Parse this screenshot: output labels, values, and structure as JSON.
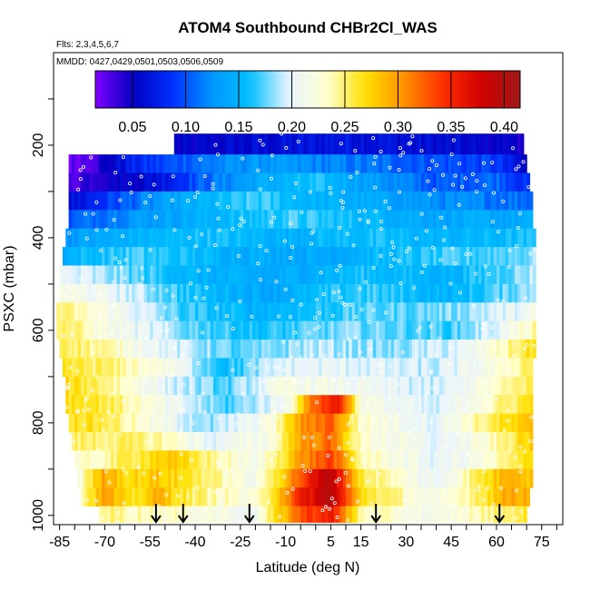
{
  "chart_data": {
    "type": "heatmap",
    "title": "ATOM4 Southbound CHBr2Cl_WAS",
    "flights_note": "Flts: 2,3,4,5,6,7",
    "dates_note": "MMDD: 0427,0429,0501,0503,0506,0509",
    "xlabel": "Latitude (deg N)",
    "ylabel": "PSXC (mbar)",
    "xlim": [
      -87,
      82
    ],
    "ylim": [
      1020,
      0
    ],
    "x_ticks": [
      -85,
      -70,
      -55,
      -40,
      -25,
      -10,
      5,
      15,
      30,
      45,
      60,
      75
    ],
    "x_tick_labels": [
      "-85",
      "-70",
      "-55",
      "-40",
      "-25",
      "-10",
      "5",
      "15",
      "30",
      "45",
      "60",
      "75"
    ],
    "y_ticks": [
      200,
      400,
      600,
      800,
      1000
    ],
    "y_tick_labels": [
      "200",
      "400",
      "600",
      "800",
      "1000"
    ],
    "colorbar": {
      "min": 0.015,
      "max": 0.415,
      "ticks": [
        0.05,
        0.1,
        0.15,
        0.2,
        0.25,
        0.3,
        0.35,
        0.4
      ],
      "tick_labels": [
        "0.05",
        "0.10",
        "0.15",
        "0.20",
        "0.25",
        "0.30",
        "0.35",
        "0.40"
      ],
      "colors": [
        "#7f00ff",
        "#0000c0",
        "#0030ff",
        "#0095ff",
        "#00bfff",
        "#e8f4ff",
        "#ffffd0",
        "#ffe000",
        "#ff9000",
        "#ff3000",
        "#d00000",
        "#a01818"
      ]
    },
    "pressure_bands": [
      {
        "p_top": 175,
        "p_bot": 220,
        "lat_min": -47,
        "lat_max": 69,
        "knots": [
          [
            -47,
            0.05
          ],
          [
            -20,
            0.06
          ],
          [
            10,
            0.07
          ],
          [
            40,
            0.06
          ],
          [
            69,
            0.05
          ]
        ]
      },
      {
        "p_top": 220,
        "p_bot": 260,
        "lat_min": -82,
        "lat_max": 70,
        "knots": [
          [
            -82,
            0.02
          ],
          [
            -72,
            0.04
          ],
          [
            -60,
            0.08
          ],
          [
            -40,
            0.11
          ],
          [
            -20,
            0.13
          ],
          [
            0,
            0.12
          ],
          [
            20,
            0.11
          ],
          [
            40,
            0.1
          ],
          [
            60,
            0.09
          ],
          [
            70,
            0.05
          ]
        ]
      },
      {
        "p_top": 260,
        "p_bot": 300,
        "lat_min": -82,
        "lat_max": 71,
        "knots": [
          [
            -82,
            0.03
          ],
          [
            -70,
            0.05
          ],
          [
            -55,
            0.06
          ],
          [
            -40,
            0.1
          ],
          [
            -20,
            0.14
          ],
          [
            0,
            0.16
          ],
          [
            20,
            0.13
          ],
          [
            40,
            0.1
          ],
          [
            60,
            0.11
          ],
          [
            71,
            0.08
          ]
        ]
      },
      {
        "p_top": 300,
        "p_bot": 340,
        "lat_min": -82,
        "lat_max": 72,
        "knots": [
          [
            -82,
            0.06
          ],
          [
            -65,
            0.1
          ],
          [
            -45,
            0.14
          ],
          [
            -20,
            0.17
          ],
          [
            0,
            0.15
          ],
          [
            20,
            0.14
          ],
          [
            45,
            0.12
          ],
          [
            72,
            0.11
          ]
        ]
      },
      {
        "p_top": 340,
        "p_bot": 380,
        "lat_min": -82,
        "lat_max": 72,
        "knots": [
          [
            -82,
            0.1
          ],
          [
            -60,
            0.13
          ],
          [
            -35,
            0.15
          ],
          [
            -10,
            0.17
          ],
          [
            10,
            0.16
          ],
          [
            40,
            0.14
          ],
          [
            72,
            0.14
          ]
        ]
      },
      {
        "p_top": 380,
        "p_bot": 420,
        "lat_min": -83,
        "lat_max": 73,
        "knots": [
          [
            -83,
            0.13
          ],
          [
            -60,
            0.15
          ],
          [
            -35,
            0.16
          ],
          [
            -10,
            0.15
          ],
          [
            15,
            0.16
          ],
          [
            45,
            0.15
          ],
          [
            73,
            0.16
          ]
        ]
      },
      {
        "p_top": 420,
        "p_bot": 460,
        "lat_min": -84,
        "lat_max": 73,
        "knots": [
          [
            -84,
            0.15
          ],
          [
            -60,
            0.17
          ],
          [
            -30,
            0.15
          ],
          [
            0,
            0.14
          ],
          [
            30,
            0.16
          ],
          [
            73,
            0.18
          ]
        ]
      },
      {
        "p_top": 460,
        "p_bot": 500,
        "lat_min": -85,
        "lat_max": 73,
        "knots": [
          [
            -85,
            0.2
          ],
          [
            -65,
            0.18
          ],
          [
            -40,
            0.15
          ],
          [
            -15,
            0.14
          ],
          [
            15,
            0.16
          ],
          [
            45,
            0.15
          ],
          [
            73,
            0.19
          ]
        ]
      },
      {
        "p_top": 500,
        "p_bot": 540,
        "lat_min": -85,
        "lat_max": 73,
        "knots": [
          [
            -85,
            0.22
          ],
          [
            -65,
            0.2
          ],
          [
            -40,
            0.16
          ],
          [
            -15,
            0.14
          ],
          [
            15,
            0.17
          ],
          [
            45,
            0.15
          ],
          [
            73,
            0.19
          ]
        ]
      },
      {
        "p_top": 540,
        "p_bot": 580,
        "lat_min": -86,
        "lat_max": 73,
        "knots": [
          [
            -86,
            0.25
          ],
          [
            -70,
            0.22
          ],
          [
            -45,
            0.17
          ],
          [
            -20,
            0.15
          ],
          [
            10,
            0.17
          ],
          [
            45,
            0.18
          ],
          [
            73,
            0.21
          ]
        ]
      },
      {
        "p_top": 580,
        "p_bot": 620,
        "lat_min": -86,
        "lat_max": 73,
        "knots": [
          [
            -86,
            0.26
          ],
          [
            -70,
            0.22
          ],
          [
            -45,
            0.18
          ],
          [
            -20,
            0.16
          ],
          [
            10,
            0.18
          ],
          [
            45,
            0.17
          ],
          [
            60,
            0.2
          ],
          [
            73,
            0.24
          ]
        ]
      },
      {
        "p_top": 620,
        "p_bot": 660,
        "lat_min": -85,
        "lat_max": 73,
        "knots": [
          [
            -85,
            0.26
          ],
          [
            -70,
            0.24
          ],
          [
            -50,
            0.2
          ],
          [
            -25,
            0.17
          ],
          [
            0,
            0.19
          ],
          [
            25,
            0.18
          ],
          [
            50,
            0.2
          ],
          [
            73,
            0.27
          ]
        ]
      },
      {
        "p_top": 660,
        "p_bot": 700,
        "lat_min": -84,
        "lat_max": 72,
        "knots": [
          [
            -84,
            0.26
          ],
          [
            -70,
            0.25
          ],
          [
            -50,
            0.22
          ],
          [
            -30,
            0.16
          ],
          [
            -10,
            0.2
          ],
          [
            10,
            0.2
          ],
          [
            40,
            0.19
          ],
          [
            60,
            0.22
          ],
          [
            72,
            0.26
          ]
        ]
      },
      {
        "p_top": 700,
        "p_bot": 740,
        "lat_min": -83,
        "lat_max": 72,
        "knots": [
          [
            -83,
            0.27
          ],
          [
            -70,
            0.25
          ],
          [
            -50,
            0.2
          ],
          [
            -30,
            0.17
          ],
          [
            -10,
            0.22
          ],
          [
            10,
            0.21
          ],
          [
            40,
            0.19
          ],
          [
            60,
            0.23
          ],
          [
            72,
            0.26
          ]
        ]
      },
      {
        "p_top": 740,
        "p_bot": 780,
        "lat_min": -83,
        "lat_max": 72,
        "knots": [
          [
            -83,
            0.27
          ],
          [
            -70,
            0.26
          ],
          [
            -50,
            0.21
          ],
          [
            -30,
            0.17
          ],
          [
            -10,
            0.21
          ],
          [
            0,
            0.33
          ],
          [
            8,
            0.36
          ],
          [
            15,
            0.22
          ],
          [
            40,
            0.19
          ],
          [
            60,
            0.24
          ],
          [
            72,
            0.27
          ]
        ]
      },
      {
        "p_top": 780,
        "p_bot": 820,
        "lat_min": -82,
        "lat_max": 72,
        "knots": [
          [
            -82,
            0.27
          ],
          [
            -70,
            0.26
          ],
          [
            -55,
            0.22
          ],
          [
            -35,
            0.18
          ],
          [
            -15,
            0.22
          ],
          [
            -5,
            0.3
          ],
          [
            5,
            0.33
          ],
          [
            15,
            0.23
          ],
          [
            40,
            0.2
          ],
          [
            60,
            0.26
          ],
          [
            72,
            0.28
          ]
        ]
      },
      {
        "p_top": 820,
        "p_bot": 860,
        "lat_min": -81,
        "lat_max": 72,
        "knots": [
          [
            -81,
            0.25
          ],
          [
            -65,
            0.25
          ],
          [
            -50,
            0.24
          ],
          [
            -35,
            0.2
          ],
          [
            -15,
            0.22
          ],
          [
            -5,
            0.3
          ],
          [
            5,
            0.32
          ],
          [
            15,
            0.23
          ],
          [
            40,
            0.2
          ],
          [
            55,
            0.22
          ],
          [
            72,
            0.28
          ]
        ]
      },
      {
        "p_top": 860,
        "p_bot": 900,
        "lat_min": -80,
        "lat_max": 72,
        "knots": [
          [
            -80,
            0.22
          ],
          [
            -65,
            0.25
          ],
          [
            -50,
            0.28
          ],
          [
            -40,
            0.26
          ],
          [
            -20,
            0.21
          ],
          [
            -5,
            0.3
          ],
          [
            5,
            0.34
          ],
          [
            15,
            0.24
          ],
          [
            40,
            0.2
          ],
          [
            55,
            0.22
          ],
          [
            72,
            0.27
          ]
        ]
      },
      {
        "p_top": 900,
        "p_bot": 940,
        "lat_min": -79,
        "lat_max": 72,
        "knots": [
          [
            -79,
            0.22
          ],
          [
            -70,
            0.3
          ],
          [
            -62,
            0.27
          ],
          [
            -52,
            0.28
          ],
          [
            -40,
            0.26
          ],
          [
            -20,
            0.21
          ],
          [
            -5,
            0.33
          ],
          [
            5,
            0.4
          ],
          [
            15,
            0.26
          ],
          [
            40,
            0.2
          ],
          [
            55,
            0.26
          ],
          [
            65,
            0.3
          ],
          [
            72,
            0.28
          ]
        ]
      },
      {
        "p_top": 940,
        "p_bot": 980,
        "lat_min": -78,
        "lat_max": 71,
        "knots": [
          [
            -78,
            0.24
          ],
          [
            -70,
            0.3
          ],
          [
            -62,
            0.26
          ],
          [
            -52,
            0.29
          ],
          [
            -40,
            0.25
          ],
          [
            -20,
            0.22
          ],
          [
            -5,
            0.35
          ],
          [
            5,
            0.4
          ],
          [
            15,
            0.27
          ],
          [
            40,
            0.21
          ],
          [
            55,
            0.26
          ],
          [
            65,
            0.3
          ],
          [
            71,
            0.29
          ]
        ]
      },
      {
        "p_top": 980,
        "p_bot": 1015,
        "lat_min": -72,
        "lat_max": 70,
        "knots": [
          [
            -72,
            0.25
          ],
          [
            -60,
            0.24
          ],
          [
            -45,
            0.23
          ],
          [
            -20,
            0.21
          ],
          [
            -5,
            0.33
          ],
          [
            5,
            0.36
          ],
          [
            15,
            0.24
          ],
          [
            40,
            0.21
          ],
          [
            55,
            0.24
          ],
          [
            70,
            0.26
          ]
        ]
      }
    ],
    "markers": {
      "type": "arrow",
      "latitudes": [
        -53,
        -44,
        -22,
        20,
        61
      ],
      "pressure": 1020
    }
  }
}
